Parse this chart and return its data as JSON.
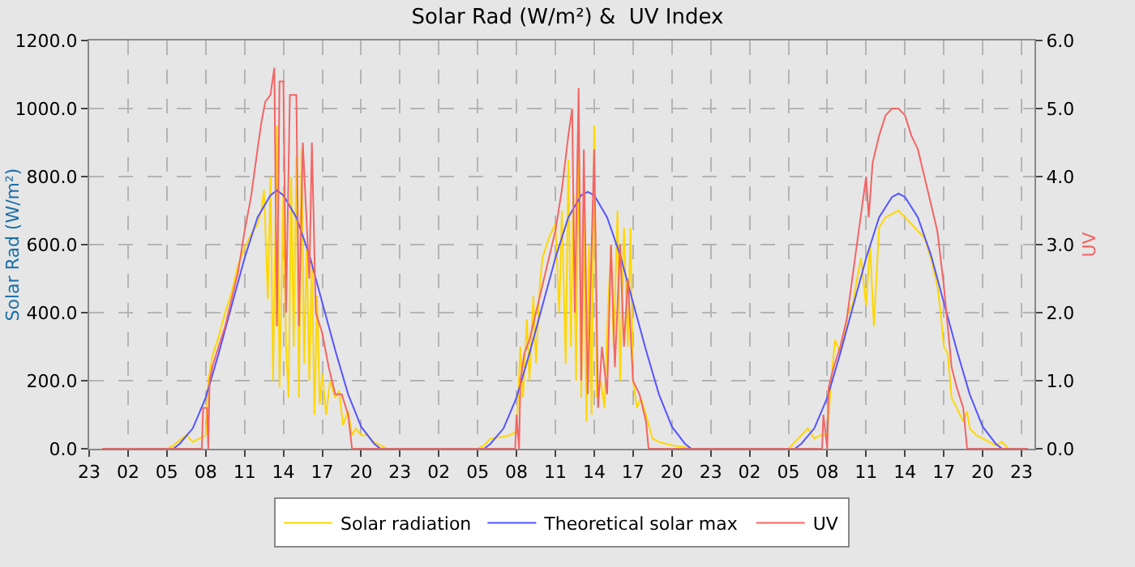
{
  "chart_data": {
    "type": "line",
    "title": "Solar Rad (W/m²) &  UV Index",
    "ylabel": "Solar Rad (W/m²)",
    "y2label": "UV",
    "xlim": [
      "--01-01T23:00",
      "--01-05T00:00"
    ],
    "xticks": [
      {
        "value": "--01-01T23:00",
        "label": "23"
      },
      {
        "value": "--01-02T02:00",
        "label": "02"
      },
      {
        "value": "--01-02T05:00",
        "label": "05"
      },
      {
        "value": "--01-02T08:00",
        "label": "08"
      },
      {
        "value": "--01-02T11:00",
        "label": "11"
      },
      {
        "value": "--01-02T14:00",
        "label": "14"
      },
      {
        "value": "--01-02T17:00",
        "label": "17"
      },
      {
        "value": "--01-02T20:00",
        "label": "20"
      },
      {
        "value": "--01-02T23:00",
        "label": "23"
      },
      {
        "value": "--01-03T02:00",
        "label": "02"
      },
      {
        "value": "--01-03T05:00",
        "label": "05"
      },
      {
        "value": "--01-03T08:00",
        "label": "08"
      },
      {
        "value": "--01-03T11:00",
        "label": "11"
      },
      {
        "value": "--01-03T14:00",
        "label": "14"
      },
      {
        "value": "--01-03T17:00",
        "label": "17"
      },
      {
        "value": "--01-03T20:00",
        "label": "20"
      },
      {
        "value": "--01-03T23:00",
        "label": "23"
      },
      {
        "value": "--01-04T02:00",
        "label": "02"
      },
      {
        "value": "--01-04T05:00",
        "label": "05"
      },
      {
        "value": "--01-04T08:00",
        "label": "08"
      },
      {
        "value": "--01-04T11:00",
        "label": "11"
      },
      {
        "value": "--01-04T14:00",
        "label": "14"
      },
      {
        "value": "--01-04T17:00",
        "label": "17"
      },
      {
        "value": "--01-04T20:00",
        "label": "20"
      },
      {
        "value": "--01-04T23:00",
        "label": "23"
      }
    ],
    "ylim": [
      0,
      1200
    ],
    "yticks": [
      {
        "value": 0,
        "label": "0.0"
      },
      {
        "value": 200,
        "label": "200.0"
      },
      {
        "value": 400,
        "label": "400.0"
      },
      {
        "value": 600,
        "label": "600.0"
      },
      {
        "value": 800,
        "label": "800.0"
      },
      {
        "value": 1000,
        "label": "1000.0"
      },
      {
        "value": 1200,
        "label": "1200.0"
      }
    ],
    "y2lim": [
      0,
      6
    ],
    "y2ticks": [
      {
        "value": 0,
        "label": "0.0"
      },
      {
        "value": 1,
        "label": "1.0"
      },
      {
        "value": 2,
        "label": "2.0"
      },
      {
        "value": 3,
        "label": "3.0"
      },
      {
        "value": 4,
        "label": "4.0"
      },
      {
        "value": 5,
        "label": "5.0"
      },
      {
        "value": 6,
        "label": "6.0"
      }
    ],
    "grid": true,
    "legend": "bottom",
    "line_style": "solid",
    "marker": "none",
    "series": [
      {
        "name": "Solar radiation",
        "color": "#ffd700",
        "x": [
          "--01-02T00:00",
          "--01-02T05:00",
          "--01-02T05:30",
          "--01-02T06:30",
          "--01-02T07:00",
          "--01-02T07:30",
          "--01-02T08:00",
          "--01-02T08:12",
          "--01-02T08:30",
          "--01-02T09:00",
          "--01-02T09:30",
          "--01-02T10:00",
          "--01-02T10:30",
          "--01-02T11:00",
          "--01-02T11:30",
          "--01-02T12:00",
          "--01-02T12:18",
          "--01-02T12:30",
          "--01-02T12:48",
          "--01-02T13:00",
          "--01-02T13:12",
          "--01-02T13:30",
          "--01-02T13:42",
          "--01-02T14:00",
          "--01-02T14:12",
          "--01-02T14:24",
          "--01-02T14:36",
          "--01-02T14:48",
          "--01-02T15:00",
          "--01-02T15:12",
          "--01-02T15:24",
          "--01-02T15:36",
          "--01-02T15:48",
          "--01-02T16:00",
          "--01-02T16:12",
          "--01-02T16:24",
          "--01-02T16:36",
          "--01-02T16:48",
          "--01-02T17:00",
          "--01-02T17:18",
          "--01-02T17:36",
          "--01-02T18:00",
          "--01-02T18:18",
          "--01-02T18:36",
          "--01-02T19:00",
          "--01-02T19:18",
          "--01-02T19:36",
          "--01-02T20:00",
          "--01-02T20:30",
          "--01-02T21:00",
          "--01-02T21:30",
          "--01-02T22:00",
          "--01-03T05:00",
          "--01-03T05:30",
          "--01-03T06:00",
          "--01-03T07:00",
          "--01-03T07:30",
          "--01-03T08:00",
          "--01-03T08:18",
          "--01-03T08:30",
          "--01-03T08:48",
          "--01-03T09:00",
          "--01-03T09:18",
          "--01-03T09:30",
          "--01-03T09:48",
          "--01-03T10:00",
          "--01-03T10:30",
          "--01-03T11:00",
          "--01-03T11:18",
          "--01-03T11:30",
          "--01-03T11:48",
          "--01-03T12:00",
          "--01-03T12:12",
          "--01-03T12:24",
          "--01-03T12:36",
          "--01-03T12:48",
          "--01-03T13:00",
          "--01-03T13:12",
          "--01-03T13:24",
          "--01-03T13:36",
          "--01-03T13:48",
          "--01-03T14:00",
          "--01-03T14:12",
          "--01-03T14:30",
          "--01-03T14:48",
          "--01-03T15:00",
          "--01-03T15:18",
          "--01-03T15:30",
          "--01-03T15:48",
          "--01-03T16:00",
          "--01-03T16:18",
          "--01-03T16:36",
          "--01-03T16:48",
          "--01-03T17:00",
          "--01-03T17:18",
          "--01-03T17:36",
          "--01-03T18:00",
          "--01-03T18:30",
          "--01-03T19:00",
          "--01-03T20:00",
          "--01-03T21:00",
          "--01-03T21:30",
          "--01-04T05:00",
          "--01-04T05:30",
          "--01-04T06:00",
          "--01-04T06:30",
          "--01-04T07:00",
          "--01-04T07:30",
          "--01-04T08:00",
          "--01-04T08:18",
          "--01-04T08:36",
          "--01-04T09:00",
          "--01-04T09:18",
          "--01-04T09:36",
          "--01-04T10:00",
          "--01-04T10:18",
          "--01-04T10:36",
          "--01-04T11:00",
          "--01-04T11:18",
          "--01-04T11:36",
          "--01-04T12:00",
          "--01-04T12:30",
          "--01-04T13:00",
          "--01-04T13:30",
          "--01-04T14:00",
          "--01-04T14:30",
          "--01-04T15:00",
          "--01-04T15:30",
          "--01-04T16:00",
          "--01-04T16:30",
          "--01-04T16:42",
          "--01-04T17:00",
          "--01-04T17:18",
          "--01-04T17:36",
          "--01-04T18:00",
          "--01-04T18:30",
          "--01-04T18:48",
          "--01-04T19:00",
          "--01-04T19:30",
          "--01-04T20:00",
          "--01-04T21:00",
          "--01-04T21:30",
          "--01-04T22:00",
          "--01-04T23:30"
        ],
        "values": [
          0,
          0,
          10,
          40,
          20,
          30,
          40,
          200,
          270,
          330,
          400,
          460,
          540,
          590,
          630,
          660,
          700,
          760,
          440,
          800,
          200,
          950,
          180,
          760,
          300,
          150,
          800,
          300,
          860,
          150,
          880,
          250,
          600,
          200,
          550,
          100,
          450,
          130,
          220,
          100,
          200,
          150,
          170,
          70,
          110,
          40,
          60,
          40,
          40,
          20,
          10,
          0,
          0,
          10,
          30,
          35,
          40,
          50,
          300,
          150,
          380,
          200,
          450,
          250,
          480,
          560,
          620,
          660,
          400,
          700,
          250,
          850,
          300,
          750,
          200,
          900,
          150,
          700,
          80,
          600,
          100,
          950,
          150,
          200,
          120,
          350,
          600,
          300,
          700,
          200,
          650,
          300,
          650,
          200,
          120,
          150,
          100,
          30,
          20,
          10,
          5,
          0,
          0,
          20,
          40,
          60,
          30,
          40,
          40,
          200,
          320,
          280,
          330,
          400,
          430,
          500,
          560,
          420,
          600,
          360,
          650,
          680,
          690,
          700,
          680,
          660,
          640,
          620,
          560,
          480,
          420,
          300,
          280,
          150,
          120,
          80,
          110,
          60,
          40,
          30,
          10,
          20,
          0,
          0
        ]
      },
      {
        "name": "Theoretical solar max",
        "color": "#5555ff",
        "x": [
          "--01-02T00:00",
          "--01-02T05:30",
          "--01-02T06:00",
          "--01-02T07:00",
          "--01-02T08:00",
          "--01-02T09:00",
          "--01-02T10:00",
          "--01-02T11:00",
          "--01-02T12:00",
          "--01-02T13:00",
          "--01-02T13:30",
          "--01-02T14:00",
          "--01-02T15:00",
          "--01-02T16:00",
          "--01-02T17:00",
          "--01-02T18:00",
          "--01-02T19:00",
          "--01-02T20:00",
          "--01-02T21:00",
          "--01-02T21:30",
          "--01-03T05:30",
          "--01-03T06:00",
          "--01-03T07:00",
          "--01-03T08:00",
          "--01-03T09:00",
          "--01-03T10:00",
          "--01-03T11:00",
          "--01-03T12:00",
          "--01-03T13:00",
          "--01-03T13:30",
          "--01-03T14:00",
          "--01-03T15:00",
          "--01-03T16:00",
          "--01-03T17:00",
          "--01-03T18:00",
          "--01-03T19:00",
          "--01-03T20:00",
          "--01-03T21:00",
          "--01-03T21:30",
          "--01-04T05:30",
          "--01-04T06:00",
          "--01-04T07:00",
          "--01-04T08:00",
          "--01-04T09:00",
          "--01-04T10:00",
          "--01-04T11:00",
          "--01-04T12:00",
          "--01-04T13:00",
          "--01-04T13:30",
          "--01-04T14:00",
          "--01-04T15:00",
          "--01-04T16:00",
          "--01-04T17:00",
          "--01-04T18:00",
          "--01-04T19:00",
          "--01-04T20:00",
          "--01-04T21:00",
          "--01-04T21:30",
          "--01-04T23:30"
        ],
        "values": [
          0,
          0,
          15,
          60,
          150,
          280,
          420,
          560,
          680,
          745,
          760,
          745,
          680,
          570,
          430,
          290,
          160,
          65,
          15,
          0,
          0,
          15,
          60,
          150,
          280,
          420,
          560,
          680,
          745,
          755,
          745,
          680,
          570,
          430,
          290,
          160,
          65,
          15,
          0,
          0,
          15,
          60,
          150,
          280,
          420,
          560,
          680,
          740,
          750,
          740,
          680,
          570,
          430,
          290,
          160,
          65,
          15,
          0,
          0
        ]
      },
      {
        "name": "UV",
        "color": "#f46464",
        "axis": "y2",
        "x": [
          "--01-02T00:00",
          "--01-02T07:42",
          "--01-02T07:48",
          "--01-02T08:06",
          "--01-02T08:12",
          "--01-02T08:18",
          "--01-02T08:30",
          "--01-02T09:00",
          "--01-02T09:30",
          "--01-02T10:00",
          "--01-02T10:30",
          "--01-02T11:00",
          "--01-02T11:30",
          "--01-02T12:00",
          "--01-02T12:18",
          "--01-02T12:36",
          "--01-02T13:00",
          "--01-02T13:18",
          "--01-02T13:30",
          "--01-02T13:42",
          "--01-02T14:00",
          "--01-02T14:12",
          "--01-02T14:30",
          "--01-02T15:00",
          "--01-02T15:12",
          "--01-02T15:30",
          "--01-02T16:00",
          "--01-02T16:12",
          "--01-02T16:30",
          "--01-02T17:00",
          "--01-02T17:30",
          "--01-02T18:00",
          "--01-02T18:30",
          "--01-02T19:00",
          "--01-02T19:18",
          "--01-03T07:54",
          "--01-03T08:00",
          "--01-03T08:12",
          "--01-03T08:18",
          "--01-03T08:36",
          "--01-03T09:00",
          "--01-03T09:30",
          "--01-03T10:00",
          "--01-03T10:30",
          "--01-03T11:00",
          "--01-03T11:30",
          "--01-03T12:00",
          "--01-03T12:18",
          "--01-03T12:30",
          "--01-03T12:48",
          "--01-03T13:00",
          "--01-03T13:12",
          "--01-03T13:30",
          "--01-03T14:00",
          "--01-03T14:18",
          "--01-03T14:36",
          "--01-03T15:00",
          "--01-03T15:18",
          "--01-03T15:36",
          "--01-03T16:00",
          "--01-03T16:18",
          "--01-03T16:36",
          "--01-03T17:00",
          "--01-03T17:30",
          "--01-03T18:00",
          "--01-03T18:12",
          "--01-04T07:36",
          "--01-04T07:42",
          "--01-04T08:00",
          "--01-04T08:06",
          "--01-04T08:30",
          "--01-04T09:00",
          "--01-04T09:30",
          "--01-04T10:00",
          "--01-04T10:30",
          "--01-04T11:00",
          "--01-04T11:12",
          "--01-04T11:30",
          "--01-04T12:00",
          "--01-04T12:30",
          "--01-04T13:00",
          "--01-04T13:30",
          "--01-04T14:00",
          "--01-04T14:30",
          "--01-04T15:00",
          "--01-04T15:30",
          "--01-04T16:00",
          "--01-04T16:30",
          "--01-04T17:00",
          "--01-04T17:18",
          "--01-04T17:36",
          "--01-04T18:00",
          "--01-04T18:30",
          "--01-04T18:48",
          "--01-04T23:30"
        ],
        "values": [
          0,
          0,
          0.6,
          0.6,
          0,
          1.0,
          1.2,
          1.5,
          1.8,
          2.2,
          2.6,
          3.2,
          3.7,
          4.4,
          4.8,
          5.1,
          5.2,
          5.6,
          1.8,
          5.4,
          5.4,
          2.0,
          5.2,
          5.2,
          1.8,
          4.5,
          2.5,
          4.5,
          2.0,
          1.7,
          1.2,
          0.8,
          0.8,
          0.5,
          0,
          0,
          0.5,
          0,
          1.0,
          1.4,
          1.6,
          2.0,
          2.4,
          2.8,
          3.2,
          3.8,
          4.6,
          5.0,
          2.0,
          5.3,
          1.0,
          4.4,
          0.8,
          4.4,
          0.6,
          1.5,
          0.8,
          3.0,
          1.2,
          3.0,
          1.5,
          2.5,
          1.0,
          0.8,
          0.4,
          0,
          0,
          0.5,
          0,
          0.9,
          1.2,
          1.5,
          1.9,
          2.6,
          3.3,
          4.0,
          3.4,
          4.2,
          4.6,
          4.9,
          5.0,
          5.0,
          4.9,
          4.6,
          4.4,
          4.0,
          3.6,
          3.2,
          2.4,
          1.8,
          1.2,
          0.9,
          0.6,
          0,
          0
        ]
      }
    ]
  }
}
